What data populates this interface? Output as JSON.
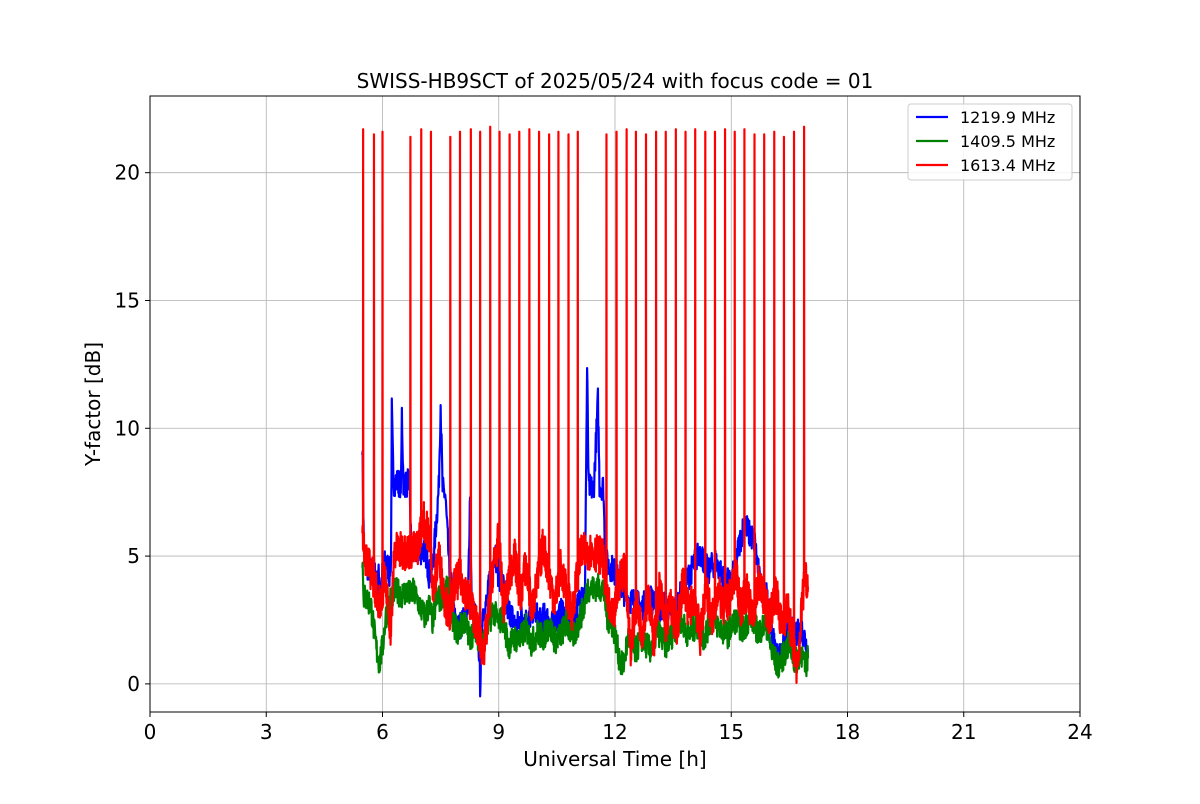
{
  "chart_data": {
    "type": "line",
    "title": "SWISS-HB9SCT of 2025/05/24 with focus code = 01",
    "xlabel": "Universal Time [h]",
    "ylabel": "Y-factor [dB]",
    "xlim": [
      0,
      24
    ],
    "ylim": [
      -1.1,
      23.0
    ],
    "xticks": [
      0,
      3,
      6,
      9,
      12,
      15,
      18,
      21,
      24
    ],
    "yticks": [
      0,
      5,
      10,
      15,
      20
    ],
    "grid": true,
    "legend_position": "top-right",
    "series": [
      {
        "name": "1219.9 MHz",
        "color": "#0000ff",
        "points": [
          [
            5.48,
            9.5
          ],
          [
            5.52,
            5.2
          ],
          [
            5.6,
            4.6
          ],
          [
            5.7,
            4.4
          ],
          [
            5.78,
            4.5
          ],
          [
            5.85,
            3.9
          ],
          [
            5.9,
            4.2
          ],
          [
            5.96,
            3.8
          ],
          [
            6.02,
            4.6
          ],
          [
            6.1,
            4.8
          ],
          [
            6.18,
            4.3
          ],
          [
            6.22,
            4.9
          ],
          [
            6.24,
            10.7
          ],
          [
            6.28,
            7.9
          ],
          [
            6.4,
            7.9
          ],
          [
            6.48,
            7.8
          ],
          [
            6.5,
            10.6
          ],
          [
            6.54,
            7.9
          ],
          [
            6.6,
            7.8
          ],
          [
            6.7,
            7.9
          ],
          [
            6.74,
            5.3
          ],
          [
            6.85,
            5.2
          ],
          [
            7.0,
            5.2
          ],
          [
            7.1,
            5.3
          ],
          [
            7.2,
            4.3
          ],
          [
            7.3,
            4.6
          ],
          [
            7.45,
            7.6
          ],
          [
            7.5,
            11.0
          ],
          [
            7.55,
            7.6
          ],
          [
            7.62,
            7.4
          ],
          [
            7.72,
            4.6
          ],
          [
            7.8,
            3.5
          ],
          [
            7.9,
            2.1
          ],
          [
            8.0,
            2.3
          ],
          [
            8.1,
            2.5
          ],
          [
            8.2,
            2.7
          ],
          [
            8.26,
            7.6
          ],
          [
            8.3,
            3.2
          ],
          [
            8.4,
            2.6
          ],
          [
            8.5,
            1.2
          ],
          [
            8.52,
            0.0
          ],
          [
            8.58,
            2.8
          ],
          [
            8.7,
            3.2
          ],
          [
            8.8,
            4.6
          ],
          [
            8.9,
            5.2
          ],
          [
            9.0,
            4.2
          ],
          [
            9.1,
            4.0
          ],
          [
            9.2,
            3.0
          ],
          [
            9.3,
            2.8
          ],
          [
            9.45,
            2.2
          ],
          [
            9.6,
            2.7
          ],
          [
            9.75,
            2.4
          ],
          [
            9.9,
            3.0
          ],
          [
            10.05,
            2.4
          ],
          [
            10.2,
            2.7
          ],
          [
            10.35,
            2.3
          ],
          [
            10.5,
            2.5
          ],
          [
            10.65,
            2.9
          ],
          [
            10.8,
            2.2
          ],
          [
            10.95,
            2.6
          ],
          [
            11.05,
            3.1
          ],
          [
            11.15,
            3.8
          ],
          [
            11.22,
            3.1
          ],
          [
            11.28,
            12.3
          ],
          [
            11.32,
            7.7
          ],
          [
            11.45,
            7.6
          ],
          [
            11.56,
            11.1
          ],
          [
            11.6,
            7.8
          ],
          [
            11.7,
            7.7
          ],
          [
            11.75,
            4.8
          ],
          [
            11.85,
            4.6
          ],
          [
            11.95,
            4.5
          ],
          [
            12.1,
            4.0
          ],
          [
            12.3,
            3.4
          ],
          [
            12.5,
            3.2
          ],
          [
            12.7,
            3.0
          ],
          [
            12.9,
            3.4
          ],
          [
            13.1,
            2.9
          ],
          [
            13.3,
            3.1
          ],
          [
            13.5,
            2.8
          ],
          [
            13.7,
            3.5
          ],
          [
            13.9,
            4.2
          ],
          [
            14.1,
            4.9
          ],
          [
            14.2,
            5.2
          ],
          [
            14.4,
            4.4
          ],
          [
            14.6,
            4.8
          ],
          [
            14.8,
            4.1
          ],
          [
            15.0,
            3.9
          ],
          [
            15.2,
            5.4
          ],
          [
            15.35,
            6.4
          ],
          [
            15.45,
            5.9
          ],
          [
            15.6,
            5.6
          ],
          [
            15.75,
            3.8
          ],
          [
            15.9,
            3.5
          ],
          [
            16.1,
            1.6
          ],
          [
            16.2,
            1.0
          ],
          [
            16.35,
            1.4
          ],
          [
            16.5,
            2.3
          ],
          [
            16.65,
            1.8
          ],
          [
            16.8,
            2.2
          ],
          [
            16.9,
            1.8
          ],
          [
            16.98,
            1.2
          ]
        ]
      },
      {
        "name": "1409.5 MHz",
        "color": "#008000",
        "points": [
          [
            5.48,
            4.9
          ],
          [
            5.52,
            3.4
          ],
          [
            5.6,
            3.3
          ],
          [
            5.7,
            3.1
          ],
          [
            5.78,
            2.1
          ],
          [
            5.85,
            1.3
          ],
          [
            5.92,
            0.8
          ],
          [
            6.0,
            1.4
          ],
          [
            6.08,
            2.6
          ],
          [
            6.18,
            3.2
          ],
          [
            6.28,
            3.6
          ],
          [
            6.4,
            3.6
          ],
          [
            6.5,
            3.5
          ],
          [
            6.6,
            3.6
          ],
          [
            6.7,
            3.5
          ],
          [
            6.8,
            3.6
          ],
          [
            6.9,
            3.3
          ],
          [
            7.0,
            2.9
          ],
          [
            7.1,
            2.6
          ],
          [
            7.2,
            3.1
          ],
          [
            7.3,
            2.4
          ],
          [
            7.4,
            3.4
          ],
          [
            7.5,
            3.3
          ],
          [
            7.6,
            3.7
          ],
          [
            7.72,
            3.6
          ],
          [
            7.82,
            2.4
          ],
          [
            7.95,
            2.0
          ],
          [
            8.1,
            2.5
          ],
          [
            8.25,
            1.8
          ],
          [
            8.4,
            2.2
          ],
          [
            8.55,
            1.4
          ],
          [
            8.7,
            2.1
          ],
          [
            8.85,
            2.9
          ],
          [
            9.0,
            2.4
          ],
          [
            9.1,
            2.6
          ],
          [
            9.25,
            1.5
          ],
          [
            9.4,
            1.8
          ],
          [
            9.55,
            1.7
          ],
          [
            9.7,
            2.2
          ],
          [
            9.85,
            1.6
          ],
          [
            10.0,
            2.0
          ],
          [
            10.15,
            1.8
          ],
          [
            10.3,
            2.3
          ],
          [
            10.45,
            1.7
          ],
          [
            10.6,
            1.9
          ],
          [
            10.75,
            2.4
          ],
          [
            10.9,
            1.8
          ],
          [
            11.0,
            2.1
          ],
          [
            11.1,
            2.6
          ],
          [
            11.2,
            3.0
          ],
          [
            11.3,
            3.8
          ],
          [
            11.4,
            3.7
          ],
          [
            11.55,
            3.8
          ],
          [
            11.7,
            3.7
          ],
          [
            11.8,
            2.6
          ],
          [
            11.95,
            2.3
          ],
          [
            12.1,
            1.1
          ],
          [
            12.2,
            0.6
          ],
          [
            12.35,
            1.9
          ],
          [
            12.5,
            1.2
          ],
          [
            12.7,
            1.8
          ],
          [
            12.9,
            1.3
          ],
          [
            13.1,
            2.1
          ],
          [
            13.3,
            1.5
          ],
          [
            13.5,
            2.0
          ],
          [
            13.7,
            2.5
          ],
          [
            13.9,
            1.9
          ],
          [
            14.1,
            2.3
          ],
          [
            14.3,
            1.8
          ],
          [
            14.5,
            2.6
          ],
          [
            14.7,
            2.2
          ],
          [
            14.9,
            1.9
          ],
          [
            15.1,
            2.5
          ],
          [
            15.3,
            2.1
          ],
          [
            15.5,
            2.7
          ],
          [
            15.7,
            2.0
          ],
          [
            15.9,
            2.4
          ],
          [
            16.05,
            1.2
          ],
          [
            16.2,
            0.7
          ],
          [
            16.35,
            1.1
          ],
          [
            16.5,
            1.6
          ],
          [
            16.65,
            0.8
          ],
          [
            16.8,
            1.3
          ],
          [
            16.9,
            0.6
          ],
          [
            16.98,
            1.0
          ]
        ]
      },
      {
        "name": "1613.4 MHz",
        "color": "#ff0000",
        "base_points": [
          [
            5.48,
            6.3
          ],
          [
            5.55,
            5.0
          ],
          [
            5.65,
            4.6
          ],
          [
            5.75,
            4.2
          ],
          [
            5.85,
            3.5
          ],
          [
            5.95,
            3.1
          ],
          [
            6.05,
            4.2
          ],
          [
            6.15,
            3.0
          ],
          [
            6.22,
            2.0
          ],
          [
            6.3,
            5.2
          ],
          [
            6.45,
            5.2
          ],
          [
            6.6,
            5.2
          ],
          [
            6.75,
            5.2
          ],
          [
            6.9,
            5.3
          ],
          [
            7.05,
            6.5
          ],
          [
            7.2,
            5.8
          ],
          [
            7.32,
            3.6
          ],
          [
            7.45,
            5.1
          ],
          [
            7.6,
            3.4
          ],
          [
            7.72,
            2.6
          ],
          [
            7.85,
            3.8
          ],
          [
            8.0,
            4.2
          ],
          [
            8.15,
            3.6
          ],
          [
            8.3,
            3.0
          ],
          [
            8.45,
            2.2
          ],
          [
            8.6,
            1.2
          ],
          [
            8.72,
            2.5
          ],
          [
            8.85,
            4.5
          ],
          [
            9.0,
            5.7
          ],
          [
            9.12,
            3.0
          ],
          [
            9.25,
            3.9
          ],
          [
            9.4,
            5.1
          ],
          [
            9.55,
            3.4
          ],
          [
            9.7,
            4.7
          ],
          [
            9.85,
            2.9
          ],
          [
            10.0,
            4.0
          ],
          [
            10.15,
            5.5
          ],
          [
            10.3,
            4.2
          ],
          [
            10.45,
            3.2
          ],
          [
            10.6,
            4.6
          ],
          [
            10.75,
            3.5
          ],
          [
            10.9,
            2.8
          ],
          [
            11.0,
            4.0
          ],
          [
            11.12,
            5.1
          ],
          [
            11.25,
            5.2
          ],
          [
            11.4,
            5.2
          ],
          [
            11.55,
            5.1
          ],
          [
            11.68,
            5.0
          ],
          [
            11.8,
            3.3
          ],
          [
            11.95,
            2.4
          ],
          [
            12.1,
            3.9
          ],
          [
            12.25,
            4.6
          ],
          [
            12.4,
            1.4
          ],
          [
            12.55,
            3.2
          ],
          [
            12.7,
            2.0
          ],
          [
            12.85,
            3.6
          ],
          [
            13.0,
            1.6
          ],
          [
            13.15,
            3.8
          ],
          [
            13.3,
            2.3
          ],
          [
            13.45,
            3.1
          ],
          [
            13.6,
            1.9
          ],
          [
            13.75,
            4.1
          ],
          [
            13.9,
            2.8
          ],
          [
            14.05,
            3.5
          ],
          [
            14.2,
            1.8
          ],
          [
            14.35,
            3.9
          ],
          [
            14.5,
            2.4
          ],
          [
            14.65,
            3.7
          ],
          [
            14.8,
            2.9
          ],
          [
            14.95,
            3.3
          ],
          [
            15.1,
            4.4
          ],
          [
            15.25,
            3.0
          ],
          [
            15.4,
            3.6
          ],
          [
            15.55,
            2.5
          ],
          [
            15.7,
            4.0
          ],
          [
            15.85,
            3.2
          ],
          [
            16.0,
            2.6
          ],
          [
            16.15,
            3.7
          ],
          [
            16.3,
            2.2
          ],
          [
            16.45,
            3.0
          ],
          [
            16.6,
            1.5
          ],
          [
            16.72,
            0.4
          ],
          [
            16.8,
            2.6
          ],
          [
            16.9,
            4.4
          ],
          [
            16.98,
            3.8
          ]
        ],
        "spikes": [
          [
            5.5,
            21.7
          ],
          [
            5.78,
            21.5
          ],
          [
            6.0,
            21.6
          ],
          [
            6.72,
            21.4
          ],
          [
            7.0,
            21.7
          ],
          [
            7.25,
            21.6
          ],
          [
            7.75,
            21.4
          ],
          [
            8.0,
            21.6
          ],
          [
            8.28,
            21.7
          ],
          [
            8.52,
            21.6
          ],
          [
            8.78,
            21.8
          ],
          [
            9.02,
            21.6
          ],
          [
            9.28,
            21.5
          ],
          [
            9.53,
            21.6
          ],
          [
            9.79,
            21.7
          ],
          [
            10.04,
            21.6
          ],
          [
            10.3,
            21.5
          ],
          [
            10.54,
            21.6
          ],
          [
            10.8,
            21.5
          ],
          [
            11.04,
            21.6
          ],
          [
            11.78,
            21.5
          ],
          [
            12.04,
            21.6
          ],
          [
            12.3,
            21.7
          ],
          [
            12.54,
            21.6
          ],
          [
            12.8,
            21.5
          ],
          [
            13.06,
            21.6
          ],
          [
            13.31,
            21.6
          ],
          [
            13.57,
            21.7
          ],
          [
            13.82,
            21.6
          ],
          [
            14.07,
            21.7
          ],
          [
            14.33,
            21.6
          ],
          [
            14.58,
            21.6
          ],
          [
            14.84,
            21.7
          ],
          [
            15.09,
            21.6
          ],
          [
            15.34,
            21.7
          ],
          [
            15.6,
            21.5
          ],
          [
            15.85,
            21.5
          ],
          [
            16.11,
            21.6
          ],
          [
            16.36,
            21.4
          ],
          [
            16.62,
            21.6
          ],
          [
            16.88,
            21.8
          ]
        ]
      }
    ]
  }
}
